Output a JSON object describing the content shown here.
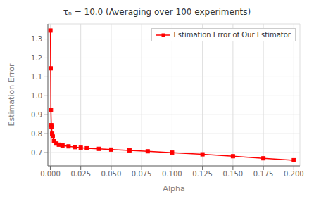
{
  "chart_data": {
    "type": "line",
    "title": "τₙ = 10.0 (Averaging over 100 experiments)",
    "xlabel": "Alpha",
    "ylabel": "Estimation Error",
    "x": [
      0.0001,
      0.0003,
      0.0005,
      0.0008,
      0.001,
      0.0015,
      0.002,
      0.003,
      0.005,
      0.007,
      0.01,
      0.015,
      0.02,
      0.025,
      0.03,
      0.04,
      0.05,
      0.065,
      0.08,
      0.1,
      0.125,
      0.15,
      0.175,
      0.2
    ],
    "series": [
      {
        "name": "Estimation Error of Our Estimator",
        "color": "red",
        "marker": "square",
        "values": [
          1.345,
          1.145,
          0.925,
          0.845,
          0.835,
          0.8,
          0.785,
          0.76,
          0.748,
          0.742,
          0.738,
          0.733,
          0.729,
          0.726,
          0.723,
          0.72,
          0.716,
          0.712,
          0.707,
          0.7,
          0.691,
          0.681,
          0.67,
          0.66
        ]
      }
    ],
    "xlim": [
      -0.002,
      0.205
    ],
    "ylim": [
      0.63,
      1.38
    ],
    "xticks": [
      {
        "value": 0,
        "label": "0.000"
      },
      0.025,
      {
        "value": 0.05,
        "label": "0.050"
      },
      0.075,
      {
        "value": 0.1,
        "label": "0.100"
      },
      0.125,
      {
        "value": 0.15,
        "label": "0.150"
      },
      0.175,
      {
        "value": 0.2,
        "label": "0.200"
      }
    ],
    "yticks": [
      0.7,
      0.8,
      0.9,
      {
        "value": 1.0,
        "label": "1.0"
      },
      1.1,
      1.2,
      1.3
    ],
    "grid": true,
    "legend": "upper right"
  }
}
